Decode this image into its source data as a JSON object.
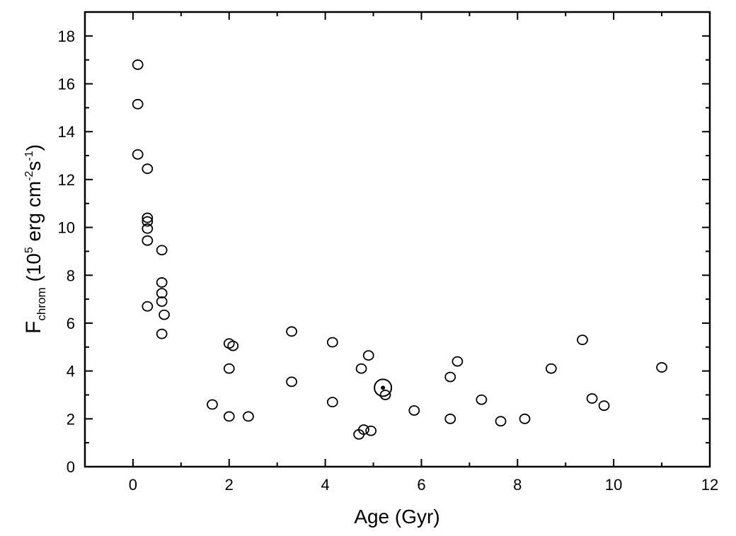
{
  "chart_data": {
    "type": "scatter",
    "xlabel": "Age (Gyr)",
    "ylabel_parts": {
      "main": "F",
      "sub": "chrom",
      "open": " (10",
      "exp1": "5",
      "mid": " erg cm",
      "exp2": "-2",
      "s": "s",
      "exp3": "-1",
      "close": ")"
    },
    "xlim": [
      -1,
      12
    ],
    "ylim": [
      0,
      19
    ],
    "xticks": [
      0,
      2,
      4,
      6,
      8,
      10,
      12
    ],
    "xtick_labels": [
      "0",
      "2",
      "4",
      "6",
      "8",
      "10",
      "12"
    ],
    "yticks": [
      0,
      2,
      4,
      6,
      8,
      10,
      12,
      14,
      16,
      18
    ],
    "ytick_labels": [
      "0",
      "2",
      "4",
      "6",
      "8",
      "10",
      "12",
      "14",
      "16",
      "18"
    ],
    "grid": false,
    "legend": "none",
    "marker": "open-circle",
    "points": [
      [
        0.1,
        16.8
      ],
      [
        0.1,
        15.15
      ],
      [
        0.1,
        13.05
      ],
      [
        0.3,
        12.45
      ],
      [
        0.3,
        10.4
      ],
      [
        0.3,
        10.25
      ],
      [
        0.3,
        9.95
      ],
      [
        0.3,
        9.45
      ],
      [
        0.6,
        9.05
      ],
      [
        0.6,
        7.7
      ],
      [
        0.6,
        7.25
      ],
      [
        0.6,
        6.9
      ],
      [
        0.3,
        6.7
      ],
      [
        0.65,
        6.35
      ],
      [
        0.6,
        5.55
      ],
      [
        2.0,
        5.15
      ],
      [
        2.08,
        5.05
      ],
      [
        2.0,
        4.1
      ],
      [
        1.65,
        2.6
      ],
      [
        2.0,
        2.1
      ],
      [
        2.4,
        2.1
      ],
      [
        3.3,
        5.65
      ],
      [
        3.3,
        3.55
      ],
      [
        4.15,
        5.2
      ],
      [
        4.15,
        2.7
      ],
      [
        4.9,
        4.65
      ],
      [
        4.75,
        4.1
      ],
      [
        5.25,
        3.0
      ],
      [
        4.7,
        1.35
      ],
      [
        4.8,
        1.55
      ],
      [
        4.95,
        1.5
      ],
      [
        5.85,
        2.35
      ],
      [
        6.6,
        3.75
      ],
      [
        6.75,
        4.4
      ],
      [
        6.6,
        2.0
      ],
      [
        7.25,
        2.8
      ],
      [
        7.65,
        1.9
      ],
      [
        8.15,
        2.0
      ],
      [
        8.7,
        4.1
      ],
      [
        9.35,
        5.3
      ],
      [
        9.55,
        2.85
      ],
      [
        9.8,
        2.55
      ],
      [
        11.0,
        4.15
      ]
    ],
    "sun": [
      5.2,
      3.3
    ]
  }
}
